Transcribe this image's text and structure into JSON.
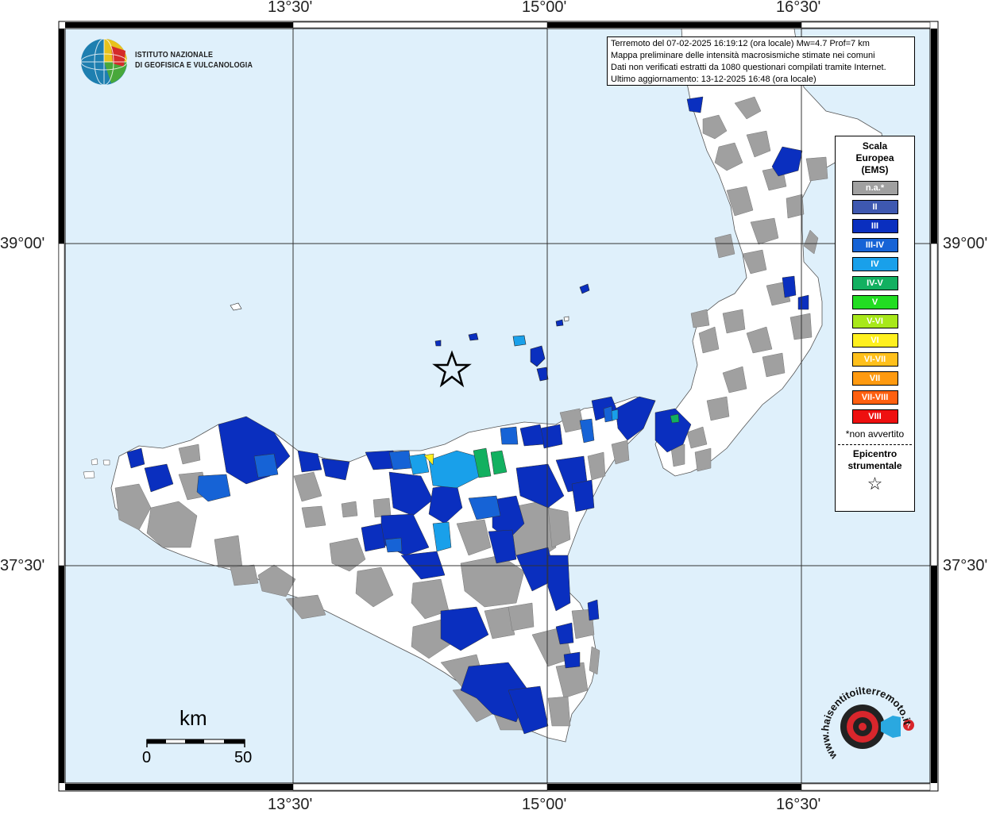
{
  "map": {
    "lon_labels": [
      "13°30'",
      "15°00'",
      "16°30'"
    ],
    "lat_labels": [
      "39°00'",
      "37°30'"
    ]
  },
  "logo": {
    "line1": "ISTITUTO NAZIONALE",
    "line2": "DI GEOFISICA E VULCANOLOGIA"
  },
  "info": {
    "line1": "Terremoto del 07-02-2025 16:19:12 (ora locale) Mw=4.7 Prof=7 km",
    "line2": "Mappa preliminare delle intensità macrosismiche stimate nei comuni",
    "line3": "Dati non verificati estratti da 1080 questionari compilati tramite Internet.",
    "line4": "Ultimo aggiornamento: 13-12-2025 16:48 (ora locale)"
  },
  "legend": {
    "title1": "Scala",
    "title2": "Europea",
    "title3": "(EMS)",
    "items": [
      {
        "label": "n.a.*",
        "color": "#a0a0a0"
      },
      {
        "label": "II",
        "color": "#3e58b0"
      },
      {
        "label": "III",
        "color": "#0a2fbf"
      },
      {
        "label": "III-IV",
        "color": "#1663d6"
      },
      {
        "label": "IV",
        "color": "#19a0ea"
      },
      {
        "label": "IV-V",
        "color": "#12b060"
      },
      {
        "label": "V",
        "color": "#22dd22"
      },
      {
        "label": "V-VI",
        "color": "#a8e81a"
      },
      {
        "label": "VI",
        "color": "#fff01e"
      },
      {
        "label": "VI-VII",
        "color": "#ffc01c"
      },
      {
        "label": "VII",
        "color": "#ff9a10"
      },
      {
        "label": "VII-VIII",
        "color": "#ff6010"
      },
      {
        "label": "VIII",
        "color": "#ee1010"
      }
    ],
    "note": "*non avvertito",
    "epicentro1": "Epicentro",
    "epicentro2": "strumentale",
    "star": "☆"
  },
  "scale": {
    "unit": "km",
    "min": "0",
    "max": "50"
  },
  "badge": {
    "text": "www.haisentitoilterremoto.it"
  }
}
